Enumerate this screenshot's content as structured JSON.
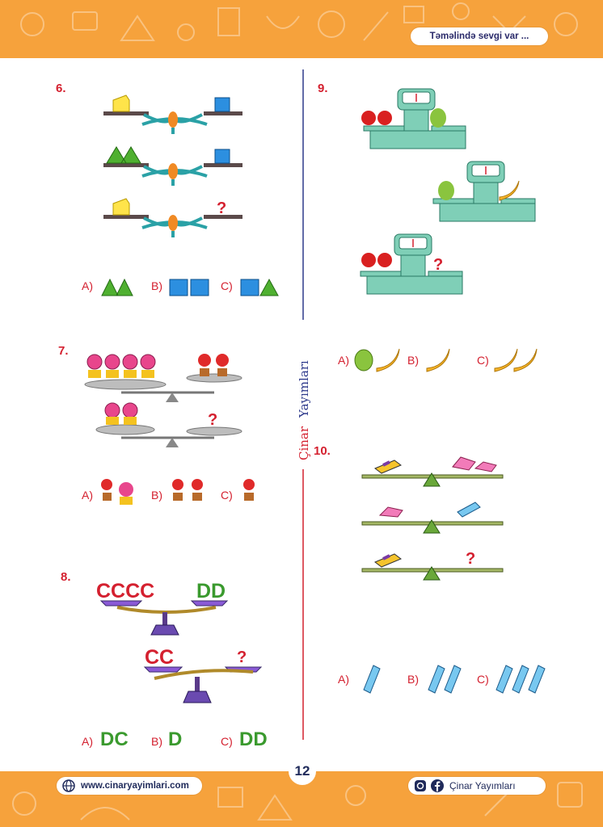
{
  "header": {
    "slogan": "Təməlində sevgi var ..."
  },
  "divider": {
    "publisher_first": "Çinar",
    "publisher_second": "Yayımları"
  },
  "questions": {
    "q6": {
      "number": "6.",
      "options": {
        "a": "A)",
        "b": "B)",
        "c": "C)"
      },
      "unknown": "?"
    },
    "q7": {
      "number": "7.",
      "options": {
        "a": "A)",
        "b": "B)",
        "c": "C)"
      },
      "unknown": "?"
    },
    "q8": {
      "number": "8.",
      "options": {
        "a": "A)",
        "b": "B)",
        "c": "C)"
      },
      "unknown": "?",
      "scale1_left": "CCCC",
      "scale1_right": "DD",
      "scale2_left": "CC",
      "answer_a": "DC",
      "answer_b": "D",
      "answer_c": "DD"
    },
    "q9": {
      "number": "9.",
      "options": {
        "a": "A)",
        "b": "B)",
        "c": "C)"
      },
      "unknown": "?"
    },
    "q10": {
      "number": "10.",
      "options": {
        "a": "A)",
        "b": "B)",
        "c": "C)"
      },
      "unknown": "?"
    }
  },
  "footer": {
    "website": "www.cinaryayimlari.com",
    "social": "Çinar Yayımları",
    "page_number": "12"
  },
  "colors": {
    "orange": "#f6a23c",
    "red": "#d4202f",
    "navy": "#1f2a5a",
    "green": "#3a9a2e",
    "teal": "#7fcfb7"
  }
}
